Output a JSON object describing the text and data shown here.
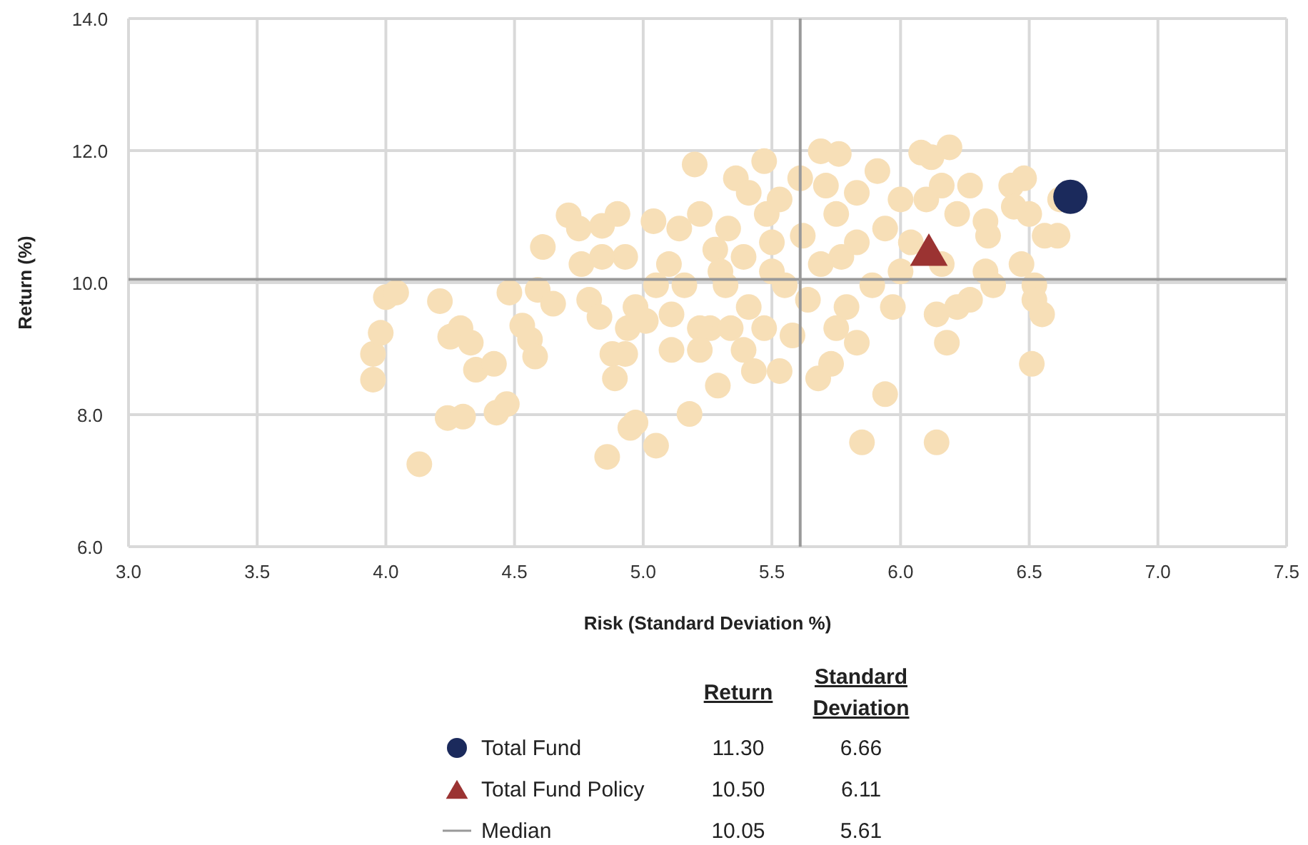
{
  "chart_data": {
    "type": "scatter",
    "xlabel": "Risk (Standard Deviation %)",
    "ylabel": "Return (%)",
    "xlim": [
      3.0,
      7.5
    ],
    "ylim": [
      6.0,
      14.0
    ],
    "xticks": [
      {
        "value": 3,
        "label": "3.0"
      },
      {
        "value": 3.5,
        "label": "3.5"
      },
      {
        "value": 4,
        "label": "4.0"
      },
      {
        "value": 4.5,
        "label": "4.5"
      },
      {
        "value": 5,
        "label": "5.0"
      },
      {
        "value": 5.5,
        "label": "5.5"
      },
      {
        "value": 6,
        "label": "6.0"
      },
      {
        "value": 6.5,
        "label": "6.5"
      },
      {
        "value": 7,
        "label": "7.0"
      },
      {
        "value": 7.5,
        "label": "7.5"
      }
    ],
    "yticks": [
      {
        "value": 6,
        "label": "6.0"
      },
      {
        "value": 8,
        "label": "8.0"
      },
      {
        "value": 10,
        "label": "10.0"
      },
      {
        "value": 12,
        "label": "12.0"
      },
      {
        "value": 14,
        "label": "14.0"
      }
    ],
    "grid": true,
    "legend": "bottom",
    "annotations": [
      "Return",
      "Standard Deviation",
      "11.30",
      "6.66",
      "10.50",
      "6.11",
      "10.05",
      "5.61"
    ],
    "ref_lines": [
      {
        "axis": "y",
        "value": 10.05,
        "label": "Median",
        "color": "#999999"
      },
      {
        "axis": "x",
        "value": 5.61,
        "color": "#999999"
      }
    ],
    "series": [
      {
        "color": "#f7dfb7",
        "marker": "circle",
        "x": [
          3.95,
          3.95,
          3.98,
          4.0,
          4.04,
          4.13,
          4.21,
          4.25,
          4.29,
          4.33,
          4.35,
          4.42,
          4.24,
          4.3,
          4.43,
          4.47,
          4.48,
          4.53,
          4.56,
          4.58,
          4.59,
          4.61,
          4.65,
          4.71,
          4.75,
          4.76,
          4.84,
          4.79,
          4.83,
          4.86,
          4.9,
          4.93,
          4.84,
          4.88,
          4.93,
          4.97,
          5.05,
          4.95,
          4.89,
          5.01,
          5.04,
          5.1,
          5.14,
          5.2,
          5.22,
          5.18,
          5.29,
          5.26,
          5.32,
          5.34,
          5.43,
          5.39,
          5.41,
          5.36,
          5.41,
          5.47,
          5.48,
          5.5,
          5.55,
          5.58,
          5.53,
          5.39,
          5.28,
          5.16,
          5.05,
          5.11,
          5.22,
          5.3,
          5.5,
          5.61,
          5.62,
          5.64,
          5.69,
          5.76,
          5.71,
          5.75,
          5.77,
          5.79,
          5.68,
          5.73,
          5.83,
          5.85,
          5.94,
          5.91,
          5.94,
          5.89,
          5.97,
          6.0,
          6.08,
          6.12,
          6.19,
          6.1,
          6.16,
          6.04,
          6.14,
          6.18,
          6.14,
          6.27,
          6.22,
          6.33,
          6.34,
          6.36,
          6.27,
          6.22,
          6.43,
          6.5,
          6.47,
          6.52,
          6.52,
          6.55,
          6.51,
          6.48,
          6.62,
          6.61,
          6.56,
          6.33,
          6.16,
          5.83,
          5.69,
          5.75,
          5.47,
          5.11,
          5.22,
          4.97,
          4.94,
          5.33,
          5.53,
          5.83,
          6.0,
          6.44
        ],
        "values": [
          8.92,
          8.53,
          9.24,
          9.78,
          9.85,
          7.25,
          9.72,
          9.18,
          9.31,
          9.09,
          8.68,
          8.77,
          7.95,
          7.97,
          8.03,
          8.16,
          9.85,
          9.35,
          9.14,
          8.88,
          9.89,
          10.54,
          9.68,
          11.02,
          10.82,
          10.28,
          10.86,
          9.74,
          9.48,
          7.36,
          11.04,
          10.39,
          10.39,
          8.92,
          8.92,
          7.88,
          7.53,
          7.8,
          8.55,
          9.42,
          10.93,
          10.28,
          10.82,
          11.79,
          11.04,
          8.01,
          8.44,
          9.31,
          9.96,
          9.31,
          8.66,
          8.98,
          9.63,
          11.58,
          11.36,
          11.84,
          11.04,
          10.61,
          9.96,
          9.2,
          8.66,
          10.39,
          10.5,
          9.96,
          9.96,
          9.52,
          9.31,
          10.17,
          10.17,
          11.58,
          10.71,
          9.74,
          11.99,
          11.95,
          11.47,
          11.04,
          10.39,
          9.63,
          8.55,
          8.77,
          9.09,
          7.58,
          8.31,
          11.69,
          10.82,
          9.96,
          9.63,
          10.17,
          11.97,
          11.9,
          12.05,
          11.26,
          11.47,
          10.61,
          9.52,
          9.09,
          7.58,
          11.47,
          11.04,
          10.93,
          10.71,
          9.96,
          9.74,
          9.63,
          11.47,
          11.04,
          10.28,
          9.96,
          9.74,
          9.52,
          8.77,
          11.58,
          11.26,
          10.71,
          10.71,
          10.17,
          10.28,
          10.61,
          10.28,
          9.31,
          9.31,
          8.98,
          8.98,
          9.63,
          9.31,
          10.82,
          11.26,
          11.36,
          11.26,
          11.15
        ]
      },
      {
        "name": "Total Fund",
        "color": "#1b2a5c",
        "marker": "circle",
        "x": [
          6.66
        ],
        "values": [
          11.3
        ]
      },
      {
        "name": "Total Fund Policy",
        "color": "#9b3332",
        "marker": "triangle",
        "x": [
          6.11
        ],
        "values": [
          10.5
        ]
      }
    ]
  }
}
